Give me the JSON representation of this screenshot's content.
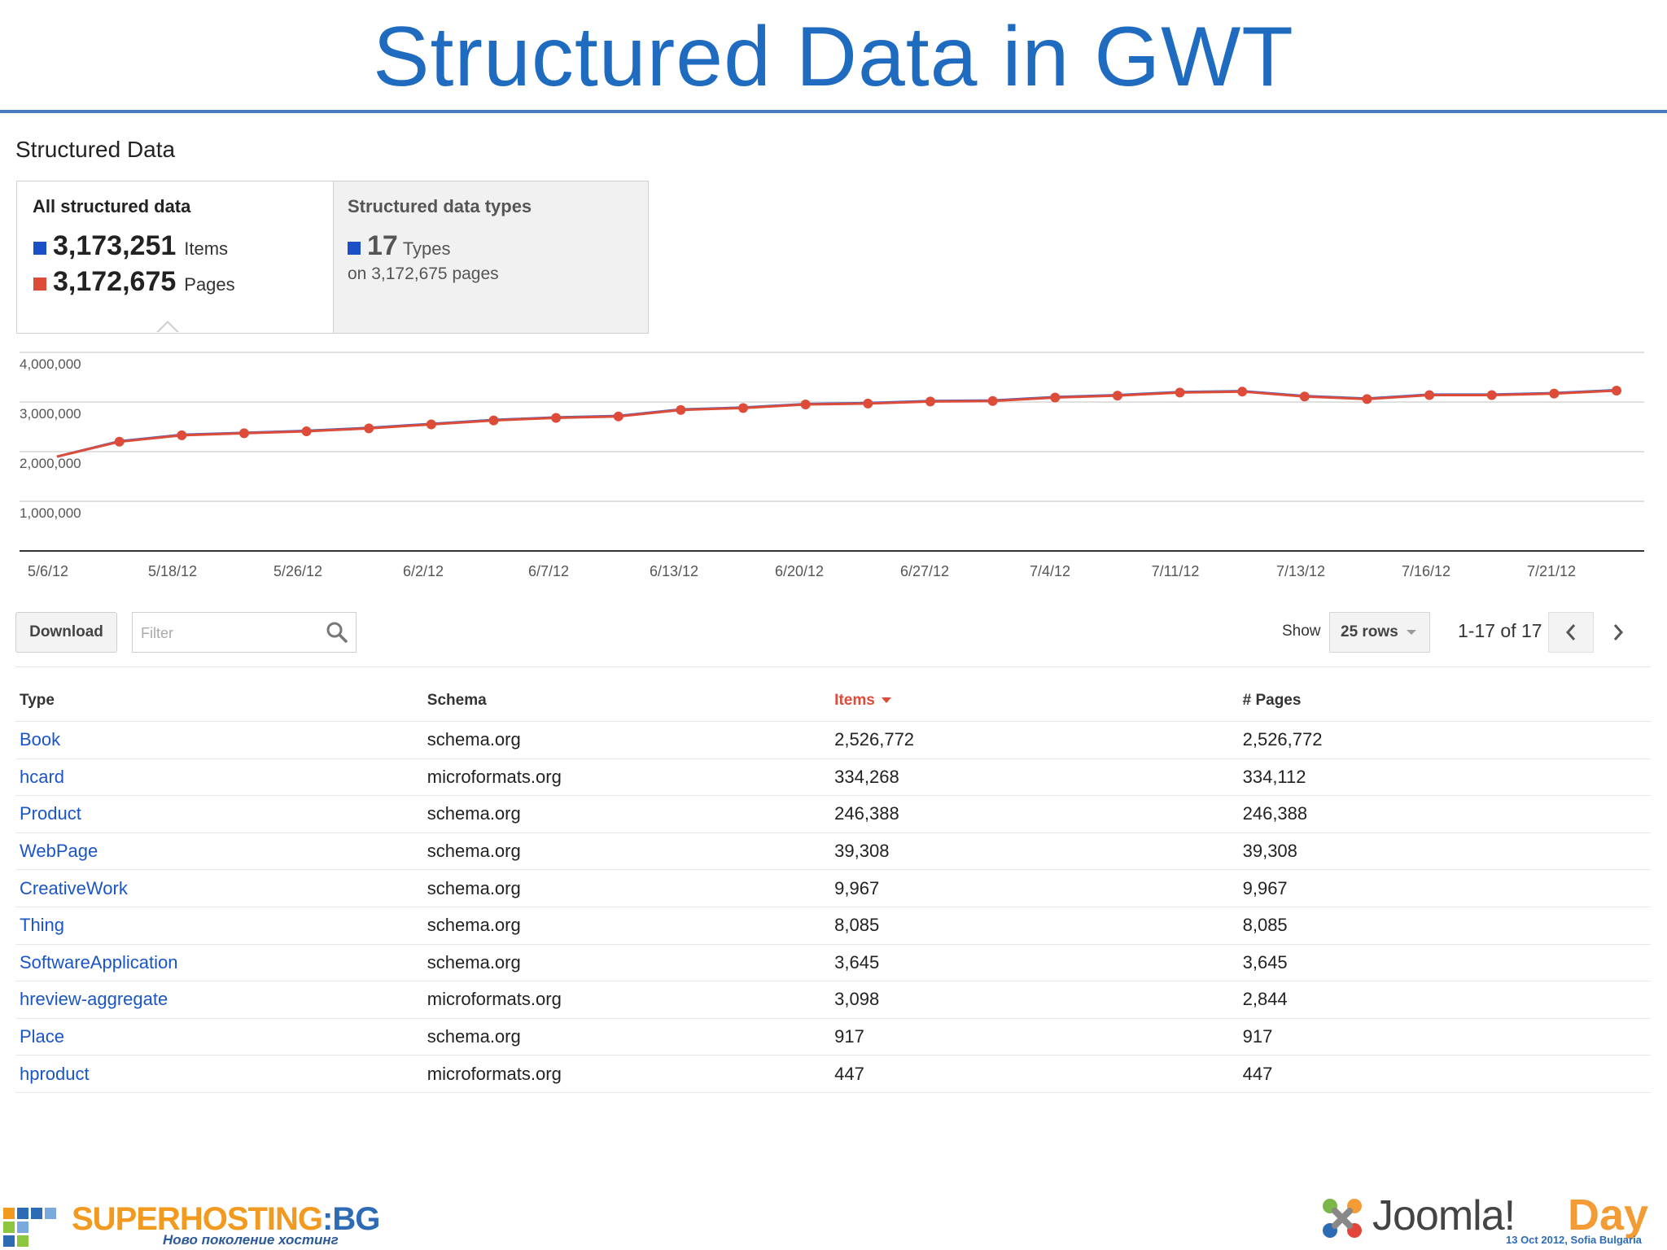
{
  "slide": {
    "title": "Structured Data in GWT"
  },
  "section": {
    "heading": "Structured Data"
  },
  "summary": {
    "all": {
      "label": "All structured data",
      "items_value": "3,173,251",
      "items_unit": "Items",
      "pages_value": "3,172,675",
      "pages_unit": "Pages"
    },
    "types": {
      "label": "Structured data types",
      "count": "17",
      "unit": "Types",
      "sub": "on 3,172,675 pages"
    },
    "colors": {
      "items": "#1a4fc8",
      "pages": "#dd4b39"
    }
  },
  "chart_data": {
    "type": "line",
    "x_labels": [
      "5/6/12",
      "5/18/12",
      "5/26/12",
      "6/2/12",
      "6/7/12",
      "6/13/12",
      "6/20/12",
      "6/27/12",
      "7/4/12",
      "7/11/12",
      "7/13/12",
      "7/16/12",
      "7/21/12"
    ],
    "y_ticks": [
      "4,000,000",
      "3,000,000",
      "2,000,000",
      "1,000,000"
    ],
    "ylim": [
      0,
      4000000
    ],
    "grid": true,
    "series": [
      {
        "name": "Items",
        "color": "#3b62c9",
        "values": [
          1900000,
          2210000,
          2340000,
          2380000,
          2420000,
          2480000,
          2560000,
          2640000,
          2690000,
          2720000,
          2850000,
          2890000,
          2960000,
          2980000,
          3020000,
          3030000,
          3100000,
          3140000,
          3200000,
          3220000,
          3120000,
          3070000,
          3150000,
          3150000,
          3180000,
          3240000
        ]
      },
      {
        "name": "Pages",
        "color": "#dd4b39",
        "values": [
          1900000,
          2200000,
          2330000,
          2370000,
          2410000,
          2470000,
          2550000,
          2630000,
          2680000,
          2710000,
          2840000,
          2880000,
          2950000,
          2970000,
          3010000,
          3020000,
          3090000,
          3130000,
          3190000,
          3210000,
          3110000,
          3060000,
          3140000,
          3140000,
          3170000,
          3230000
        ]
      }
    ]
  },
  "toolbar": {
    "download_label": "Download",
    "filter_placeholder": "Filter",
    "show_label": "Show",
    "rows_label": "25 rows",
    "page_info": "1-17 of 17"
  },
  "table": {
    "headers": {
      "type": "Type",
      "schema": "Schema",
      "items": "Items",
      "pages": "# Pages"
    },
    "rows": [
      {
        "type": "Book",
        "schema": "schema.org",
        "items": "2,526,772",
        "pages": "2,526,772"
      },
      {
        "type": "hcard",
        "schema": "microformats.org",
        "items": "334,268",
        "pages": "334,112"
      },
      {
        "type": "Product",
        "schema": "schema.org",
        "items": "246,388",
        "pages": "246,388"
      },
      {
        "type": "WebPage",
        "schema": "schema.org",
        "items": "39,308",
        "pages": "39,308"
      },
      {
        "type": "CreativeWork",
        "schema": "schema.org",
        "items": "9,967",
        "pages": "9,967"
      },
      {
        "type": "Thing",
        "schema": "schema.org",
        "items": "8,085",
        "pages": "8,085"
      },
      {
        "type": "SoftwareApplication",
        "schema": "schema.org",
        "items": "3,645",
        "pages": "3,645"
      },
      {
        "type": "hreview-aggregate",
        "schema": "microformats.org",
        "items": "3,098",
        "pages": "2,844"
      },
      {
        "type": "Place",
        "schema": "schema.org",
        "items": "917",
        "pages": "917"
      },
      {
        "type": "hproduct",
        "schema": "microformats.org",
        "items": "447",
        "pages": "447"
      }
    ]
  },
  "footer": {
    "left_logo": {
      "brand_main": "SUPERHOSTING",
      "brand_dot": ":",
      "brand_tld": "BG",
      "tagline": "Ново поколение хостинг"
    },
    "right_logo": {
      "brand": "Joomla!",
      "suffix": "Day",
      "date": "13 Oct 2012, Sofia Bulgaria"
    }
  }
}
